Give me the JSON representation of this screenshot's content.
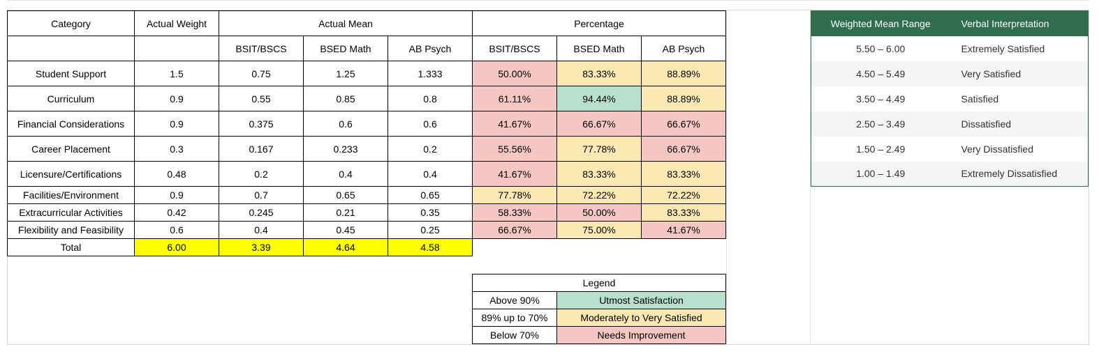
{
  "main_table": {
    "header1": {
      "category": "Category",
      "actual_weight": "Actual Weight",
      "actual_mean": "Actual Mean",
      "percentage": "Percentage"
    },
    "subheaders": {
      "mean": [
        "BSIT/BSCS",
        "BSED Math",
        "AB Psych"
      ],
      "pct": [
        "BSIT/BSCS",
        "BSED Math",
        "AB Psych"
      ]
    },
    "rows": [
      {
        "category": "Student Support",
        "weight": "1.5",
        "means": [
          "0.75",
          "1.25",
          "1.333"
        ],
        "pcts": [
          "50.00%",
          "83.33%",
          "88.89%"
        ],
        "pct_levels": [
          "needs",
          "moderate",
          "moderate"
        ]
      },
      {
        "category": "Curriculum",
        "weight": "0.9",
        "means": [
          "0.55",
          "0.85",
          "0.8"
        ],
        "pcts": [
          "61.11%",
          "94.44%",
          "88.89%"
        ],
        "pct_levels": [
          "needs",
          "utmost",
          "moderate"
        ]
      },
      {
        "category": "Financial Considerations",
        "weight": "0.9",
        "means": [
          "0.375",
          "0.6",
          "0.6"
        ],
        "pcts": [
          "41.67%",
          "66.67%",
          "66.67%"
        ],
        "pct_levels": [
          "needs",
          "needs",
          "needs"
        ]
      },
      {
        "category": "Career Placement",
        "weight": "0.3",
        "means": [
          "0.167",
          "0.233",
          "0.2"
        ],
        "pcts": [
          "55.56%",
          "77.78%",
          "66.67%"
        ],
        "pct_levels": [
          "needs",
          "moderate",
          "needs"
        ]
      },
      {
        "category": "Licensure/Certifications",
        "weight": "0.48",
        "means": [
          "0.2",
          "0.4",
          "0.4"
        ],
        "pcts": [
          "41.67%",
          "83.33%",
          "83.33%"
        ],
        "pct_levels": [
          "needs",
          "moderate",
          "moderate"
        ]
      },
      {
        "category": "Facilities/Environment",
        "weight": "0.9",
        "means": [
          "0.7",
          "0.65",
          "0.65"
        ],
        "pcts": [
          "77.78%",
          "72.22%",
          "72.22%"
        ],
        "pct_levels": [
          "moderate",
          "moderate",
          "moderate"
        ]
      },
      {
        "category": "Extracurricular Activities",
        "weight": "0.42",
        "means": [
          "0.245",
          "0.21",
          "0.35"
        ],
        "pcts": [
          "58.33%",
          "50.00%",
          "83.33%"
        ],
        "pct_levels": [
          "needs",
          "needs",
          "moderate"
        ]
      },
      {
        "category": "Flexibility and Feasibility",
        "weight": "0.6",
        "means": [
          "0.4",
          "0.45",
          "0.25"
        ],
        "pcts": [
          "66.67%",
          "75.00%",
          "41.67%"
        ],
        "pct_levels": [
          "needs",
          "moderate",
          "needs"
        ]
      }
    ],
    "total": {
      "label": "Total",
      "weight": "6.00",
      "means": [
        "3.39",
        "4.64",
        "4.58"
      ]
    }
  },
  "legend": {
    "title": "Legend",
    "items": [
      {
        "range": "Above 90%",
        "label": "Utmost Satisfaction",
        "level": "utmost"
      },
      {
        "range": "89% up to 70%",
        "label": "Moderately to Very Satisfied",
        "level": "moderate"
      },
      {
        "range": "Below 70%",
        "label": "Needs Improvement",
        "level": "needs"
      }
    ]
  },
  "scale_table": {
    "headers": [
      "Weighted Mean Range",
      "Verbal Interpretation"
    ],
    "rows": [
      {
        "range": "5.50 – 6.00",
        "verbal": "Extremely Satisfied"
      },
      {
        "range": "4.50 – 5.49",
        "verbal": "Very Satisfied"
      },
      {
        "range": "3.50 – 4.49",
        "verbal": "Satisfied"
      },
      {
        "range": "2.50 – 3.49",
        "verbal": "Dissatisfied"
      },
      {
        "range": "1.50 – 2.49",
        "verbal": "Very Dissatisfied"
      },
      {
        "range": "1.00 – 1.49",
        "verbal": "Extremely Dissatisfied"
      }
    ]
  },
  "colors": {
    "needs": "#f4c7c3",
    "moderate": "#fce8b2",
    "utmost": "#b7e1cd",
    "total_highlight": "#ffff00",
    "scale_header": "#2f6d4f"
  }
}
